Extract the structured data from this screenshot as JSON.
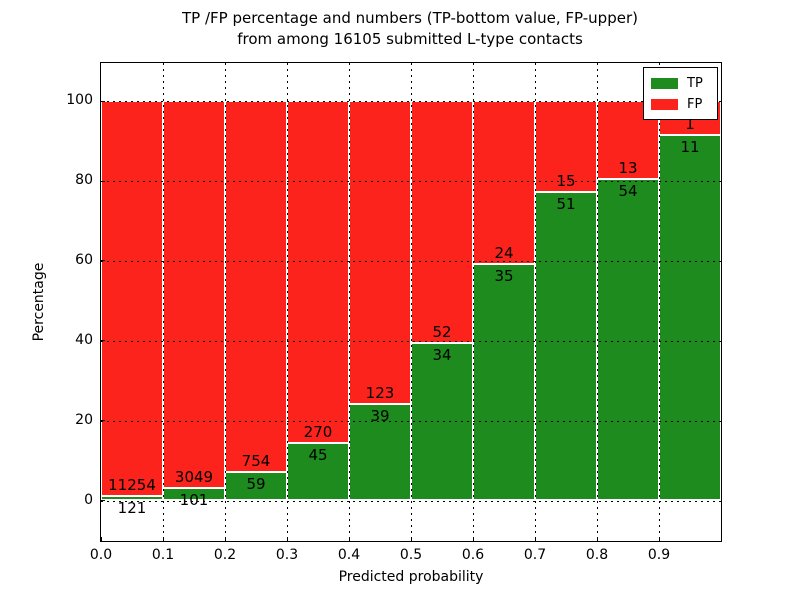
{
  "title": {
    "line1": "TP /FP percentage and numbers (TP-bottom value, FP-upper)",
    "line2": "from among 16105 submitted L-type contacts"
  },
  "axes": {
    "xlabel": "Predicted probability",
    "ylabel": "Percentage",
    "xticks": [
      "0.0",
      "0.1",
      "0.2",
      "0.3",
      "0.4",
      "0.5",
      "0.6",
      "0.7",
      "0.8",
      "0.9"
    ],
    "yticks": [
      "0",
      "20",
      "40",
      "60",
      "80",
      "100"
    ]
  },
  "legend": {
    "items": [
      {
        "label": "TP",
        "color": "#1e8b1e"
      },
      {
        "label": "FP",
        "color": "#fb231c"
      }
    ]
  },
  "chart_data": {
    "type": "bar",
    "stacked": true,
    "normalized_to_percent": true,
    "title": "TP /FP percentage and numbers (TP-bottom value, FP-upper) from among 16105 submitted L-type contacts",
    "xlabel": "Predicted probability",
    "ylabel": "Percentage",
    "total_contacts": 16105,
    "bin_edges": [
      0.0,
      0.1,
      0.2,
      0.3,
      0.4,
      0.5,
      0.6,
      0.7,
      0.8,
      0.9,
      1.0
    ],
    "categories": [
      "0.0-0.1",
      "0.1-0.2",
      "0.2-0.3",
      "0.3-0.4",
      "0.4-0.5",
      "0.5-0.6",
      "0.6-0.7",
      "0.7-0.8",
      "0.8-0.9",
      "0.9-1.0"
    ],
    "series": [
      {
        "name": "TP",
        "color": "#1e8b1e",
        "counts": [
          121,
          101,
          59,
          45,
          39,
          34,
          35,
          51,
          54,
          11
        ]
      },
      {
        "name": "FP",
        "color": "#fb231c",
        "counts": [
          11254,
          3049,
          754,
          270,
          123,
          52,
          24,
          15,
          13,
          1
        ]
      }
    ],
    "tp_percent_of_bin": [
      1.1,
      3.2,
      7.3,
      14.3,
      24.1,
      39.5,
      59.3,
      77.3,
      80.6,
      91.7
    ],
    "xlim": [
      0.0,
      1.0
    ],
    "ylim": [
      -10.8,
      109.4
    ],
    "grid": "dotted black, on top of bars",
    "bar_edge_color": "#ffffff",
    "legend_position": "upper right"
  }
}
